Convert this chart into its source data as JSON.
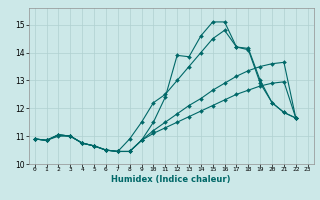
{
  "title": "",
  "xlabel": "Humidex (Indice chaleur)",
  "ylabel": "",
  "background_color": "#cce8e8",
  "grid_color": "#b0d0d0",
  "line_color": "#006868",
  "xlim": [
    -0.5,
    23.5
  ],
  "ylim": [
    10,
    15.6
  ],
  "yticks": [
    10,
    11,
    12,
    13,
    14,
    15
  ],
  "xticks": [
    0,
    1,
    2,
    3,
    4,
    5,
    6,
    7,
    8,
    9,
    10,
    11,
    12,
    13,
    14,
    15,
    16,
    17,
    18,
    19,
    20,
    21,
    22,
    23
  ],
  "series": [
    {
      "x": [
        0,
        1,
        2,
        3,
        4,
        5,
        6,
        7,
        8,
        9,
        10,
        11,
        12,
        13,
        14,
        15,
        16,
        17,
        18,
        19,
        20,
        21,
        22
      ],
      "y": [
        10.9,
        10.85,
        11.0,
        11.0,
        10.75,
        10.65,
        10.5,
        10.45,
        10.45,
        10.85,
        11.5,
        12.4,
        13.9,
        13.85,
        14.6,
        15.1,
        15.1,
        14.2,
        14.15,
        13.0,
        12.2,
        11.85,
        11.65
      ]
    },
    {
      "x": [
        0,
        1,
        2,
        3,
        4,
        5,
        6,
        7,
        8,
        9,
        10,
        11,
        12,
        13,
        14,
        15,
        16,
        17,
        18,
        19,
        20,
        21,
        22
      ],
      "y": [
        10.9,
        10.85,
        11.05,
        11.0,
        10.75,
        10.65,
        10.5,
        10.45,
        10.9,
        11.5,
        12.2,
        12.5,
        13.0,
        13.5,
        14.0,
        14.5,
        14.8,
        14.2,
        14.1,
        12.9,
        12.2,
        11.85,
        11.65
      ]
    },
    {
      "x": [
        0,
        1,
        2,
        3,
        4,
        5,
        6,
        7,
        8,
        9,
        10,
        11,
        12,
        13,
        14,
        15,
        16,
        17,
        18,
        19,
        20,
        21,
        22
      ],
      "y": [
        10.9,
        10.85,
        11.05,
        11.0,
        10.75,
        10.65,
        10.5,
        10.45,
        10.45,
        10.85,
        11.2,
        11.5,
        11.8,
        12.1,
        12.35,
        12.65,
        12.9,
        13.15,
        13.35,
        13.5,
        13.6,
        13.65,
        11.65
      ]
    },
    {
      "x": [
        0,
        1,
        2,
        3,
        4,
        5,
        6,
        7,
        8,
        9,
        10,
        11,
        12,
        13,
        14,
        15,
        16,
        17,
        18,
        19,
        20,
        21,
        22
      ],
      "y": [
        10.9,
        10.85,
        11.05,
        11.0,
        10.75,
        10.65,
        10.5,
        10.45,
        10.45,
        10.85,
        11.1,
        11.3,
        11.5,
        11.7,
        11.9,
        12.1,
        12.3,
        12.5,
        12.65,
        12.8,
        12.9,
        12.95,
        11.65
      ]
    }
  ]
}
